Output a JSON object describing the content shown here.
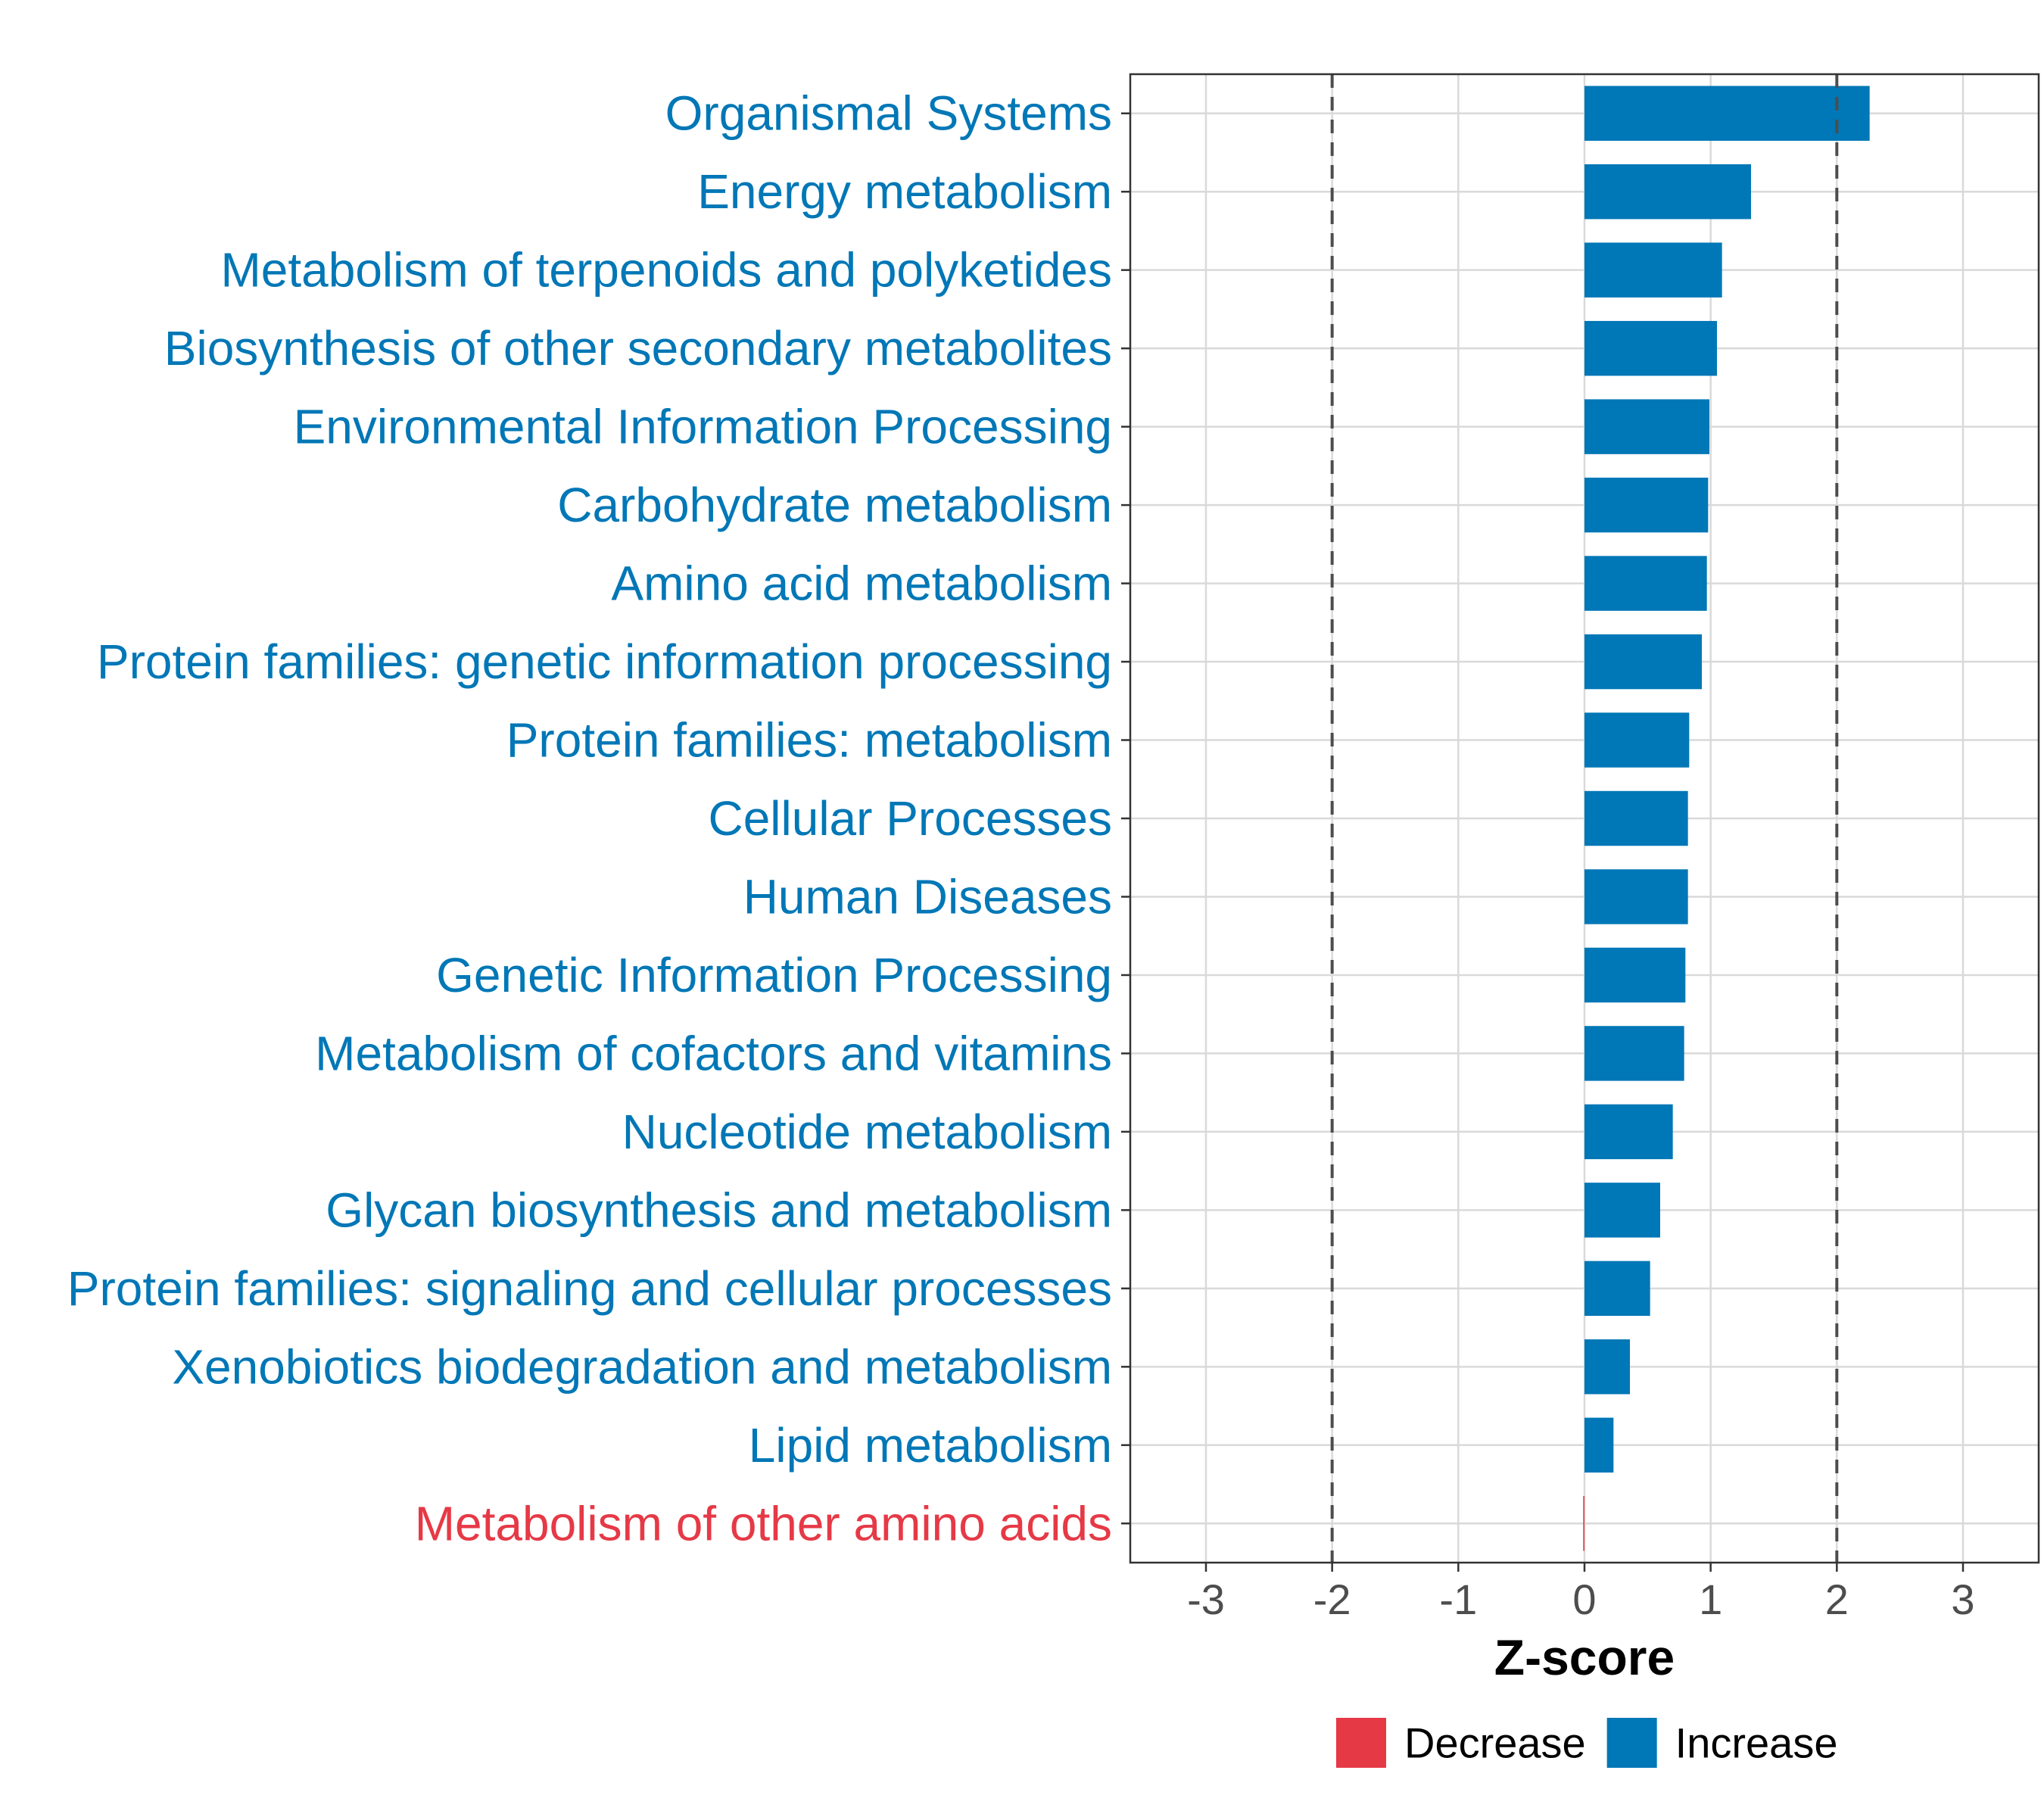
{
  "chart_data": {
    "type": "bar",
    "orientation": "horizontal",
    "xlabel": "Z-score",
    "ylabel": "",
    "xlim": [
      -3.6,
      3.6
    ],
    "x_ticks": [
      -3,
      -2,
      -1,
      0,
      1,
      2,
      3
    ],
    "x_tick_labels": [
      "-3",
      "-2",
      "-1",
      "0",
      "1",
      "2",
      "3"
    ],
    "threshold_lines": [
      -2,
      2
    ],
    "grid": true,
    "legend": {
      "position": "bottom",
      "items": [
        {
          "label": "Decrease",
          "color": "#e63946"
        },
        {
          "label": "Increase",
          "color": "#0077b6"
        }
      ]
    },
    "categories": [
      "Organismal Systems",
      "Energy metabolism",
      "Metabolism of terpenoids and polyketides",
      "Biosynthesis of other secondary metabolites",
      "Environmental Information Processing",
      "Carbohydrate metabolism",
      "Amino acid metabolism",
      "Protein families: genetic information processing",
      "Protein families: metabolism",
      "Cellular Processes",
      "Human Diseases",
      "Genetic Information Processing",
      "Metabolism of cofactors and vitamins",
      "Nucleotide metabolism",
      "Glycan biosynthesis and metabolism",
      "Protein families: signaling and cellular processes",
      "Xenobiotics biodegradation and metabolism",
      "Lipid metabolism",
      "Metabolism of other amino acids"
    ],
    "values": [
      2.26,
      1.32,
      1.09,
      1.05,
      0.99,
      0.98,
      0.97,
      0.93,
      0.83,
      0.82,
      0.82,
      0.8,
      0.79,
      0.7,
      0.6,
      0.52,
      0.36,
      0.23,
      -0.01
    ],
    "groups": [
      "Increase",
      "Increase",
      "Increase",
      "Increase",
      "Increase",
      "Increase",
      "Increase",
      "Increase",
      "Increase",
      "Increase",
      "Increase",
      "Increase",
      "Increase",
      "Increase",
      "Increase",
      "Increase",
      "Increase",
      "Increase",
      "Decrease"
    ]
  }
}
